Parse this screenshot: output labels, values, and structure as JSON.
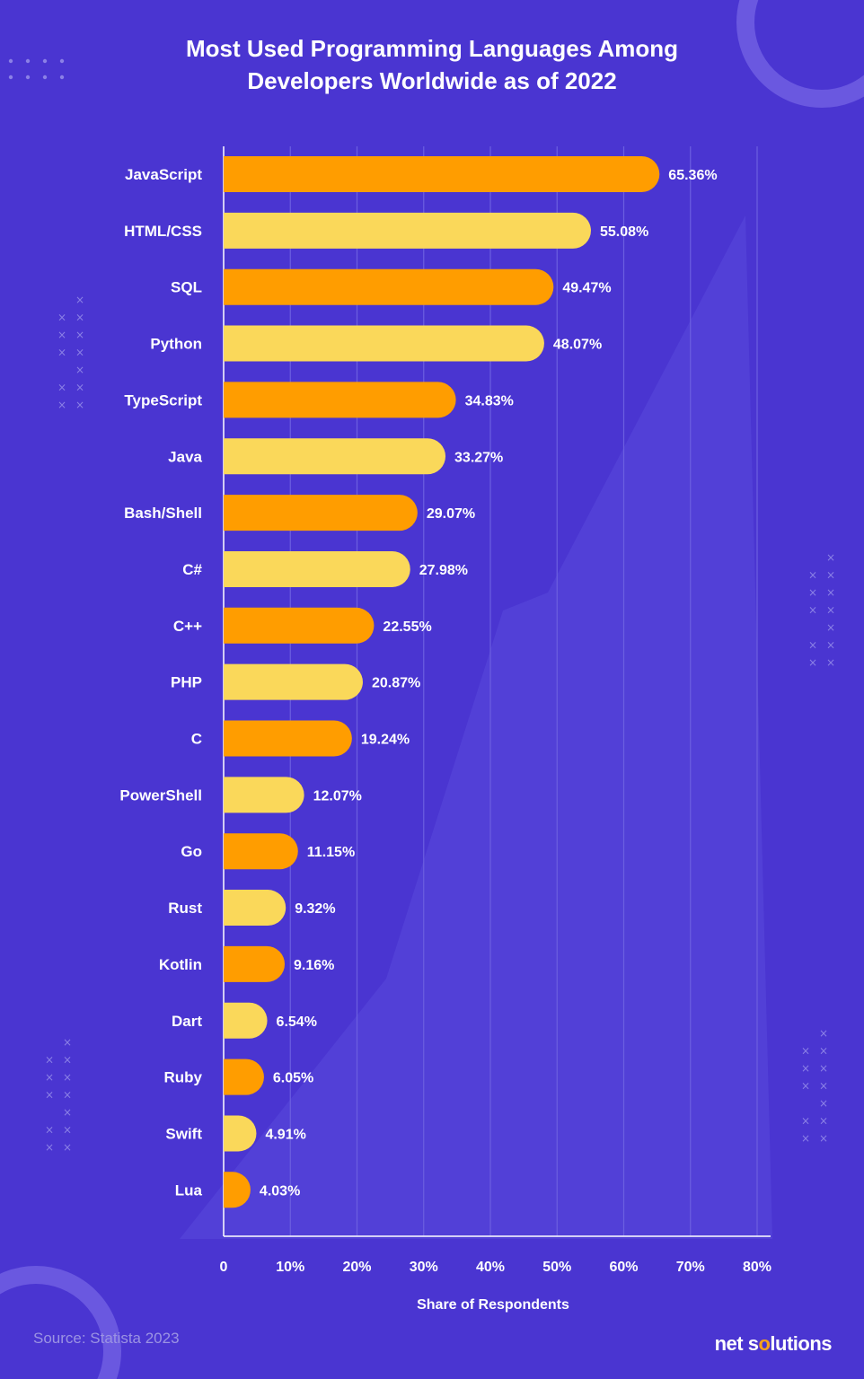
{
  "chart_data": {
    "type": "bar",
    "orientation": "horizontal",
    "title_line1": "Most Used Programming Languages Among",
    "title_line2": "Developers Worldwide as of 2022",
    "xlabel": "Share of Respondents",
    "categories": [
      "JavaScript",
      "HTML/CSS",
      "SQL",
      "Python",
      "TypeScript",
      "Java",
      "Bash/Shell",
      "C#",
      "C++",
      "PHP",
      "C",
      "PowerShell",
      "Go",
      "Rust",
      "Kotlin",
      "Dart",
      "Ruby",
      "Swift",
      "Lua"
    ],
    "values": [
      65.36,
      55.08,
      49.47,
      48.07,
      34.83,
      33.27,
      29.07,
      27.98,
      22.55,
      20.87,
      19.24,
      12.07,
      11.15,
      9.32,
      9.16,
      6.54,
      6.05,
      4.91,
      4.03
    ],
    "value_labels": [
      "65.36%",
      "55.08%",
      "49.47%",
      "48.07%",
      "34.83%",
      "33.27%",
      "29.07%",
      "27.98%",
      "22.55%",
      "20.87%",
      "19.24%",
      "12.07%",
      "11.15%",
      "9.32%",
      "9.16%",
      "6.54%",
      "6.05%",
      "4.91%",
      "4.03%"
    ],
    "xticks": [
      "0",
      "10%",
      "20%",
      "30%",
      "40%",
      "50%",
      "60%",
      "70%",
      "80%"
    ],
    "xlim": [
      0,
      80
    ],
    "grid": true,
    "colors": [
      "#ff9d00",
      "#fad85a"
    ]
  },
  "source": "Source: Statista 2023",
  "brand": {
    "part1": "net s",
    "dot": "o",
    "part2": "lutions"
  },
  "theme": {
    "background": "#4a35d1"
  }
}
